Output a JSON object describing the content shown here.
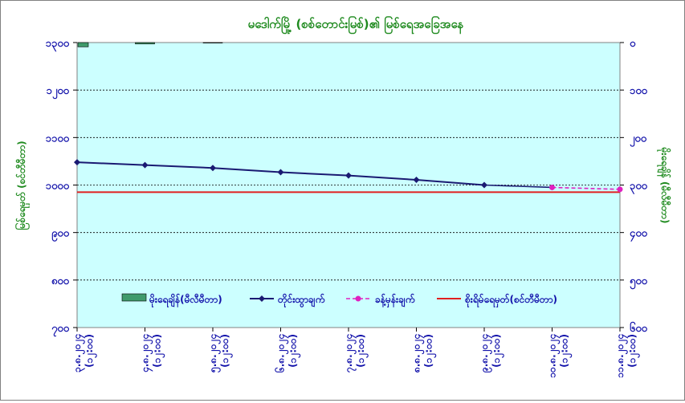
{
  "chart_data": {
    "type": "line",
    "title": "မဒေါက်မြို့ (စစ်တောင်းမြစ်)၏ မြစ်ရေအခြေအနေ",
    "ylabel_left": "မြစ်ရေမှတ် (စင်တီမီတာ)",
    "ylabel_right": "မိုးရေချိန် (မီလီမီတာ)",
    "y_left": {
      "min": 700,
      "max": 1300,
      "ticks": [
        "၇၀၀",
        "၈၀၀",
        "၉၀၀",
        "၁၀၀၀",
        "၁၁၀၀",
        "၁၂၀၀",
        "၁၃၀၀"
      ],
      "tick_values": [
        700,
        800,
        900,
        1000,
        1100,
        1200,
        1300
      ]
    },
    "y_right": {
      "min": 0,
      "max": 600,
      "inverted": true,
      "ticks": [
        "၀",
        "၁၀၀",
        "၂၀၀",
        "၃၀၀",
        "၄၀၀",
        "၅၀၀",
        "၆၀၀"
      ],
      "tick_values": [
        0,
        100,
        200,
        300,
        400,
        500,
        600
      ]
    },
    "categories": [
      {
        "date": "၃.၈.၂၀၂၄",
        "time": "(၁၂:၀၀)"
      },
      {
        "date": "၄.၈.၂၀၂၄",
        "time": "(၁၂:၀၀)"
      },
      {
        "date": "၅.၈.၂၀၂၄",
        "time": "(၁၂:၀၀)"
      },
      {
        "date": "၆.၈.၂၀၂၄",
        "time": "(၁၂:၀၀)"
      },
      {
        "date": "၇.၈.၂၀၂၄",
        "time": "(၁၂:၀၀)"
      },
      {
        "date": "၈.၈.၂၀၂၄",
        "time": "(၁၂:၀၀)"
      },
      {
        "date": "၉.၈.၂၀၂၄",
        "time": "(၁၂:၀၀)"
      },
      {
        "date": "၁၀.၈.၂၀၂၄",
        "time": "(၁၂:၀၀)"
      },
      {
        "date": "၁၁.၈.၂၀၂၄",
        "time": "(၁၂:၀၀)"
      }
    ],
    "series": [
      {
        "name": "မိုးရေချိန်(မီလီမီတာ)",
        "kind": "bar",
        "axis": "right",
        "color": "#3f9a6b",
        "values": [
          9,
          3,
          1,
          0,
          0,
          0,
          0,
          0,
          0
        ]
      },
      {
        "name": "တိုင်းထွာချက်",
        "kind": "line",
        "axis": "left",
        "color": "#1a1a72",
        "values": [
          1048,
          1042,
          1036,
          1027,
          1020,
          1011,
          1000,
          null,
          null
        ]
      },
      {
        "name": "ခန့်မှန်းချက်",
        "kind": "dashed",
        "axis": "left",
        "color": "#e020c0",
        "values": [
          null,
          null,
          null,
          null,
          null,
          null,
          null,
          995,
          991
        ]
      },
      {
        "name": "စိုးရိမ်ရေမှတ်(စင်တီမီတာ)",
        "kind": "reference",
        "axis": "left",
        "color": "#e02020",
        "value": 985
      }
    ],
    "grid": true,
    "legend_position": "bottom-inside"
  }
}
